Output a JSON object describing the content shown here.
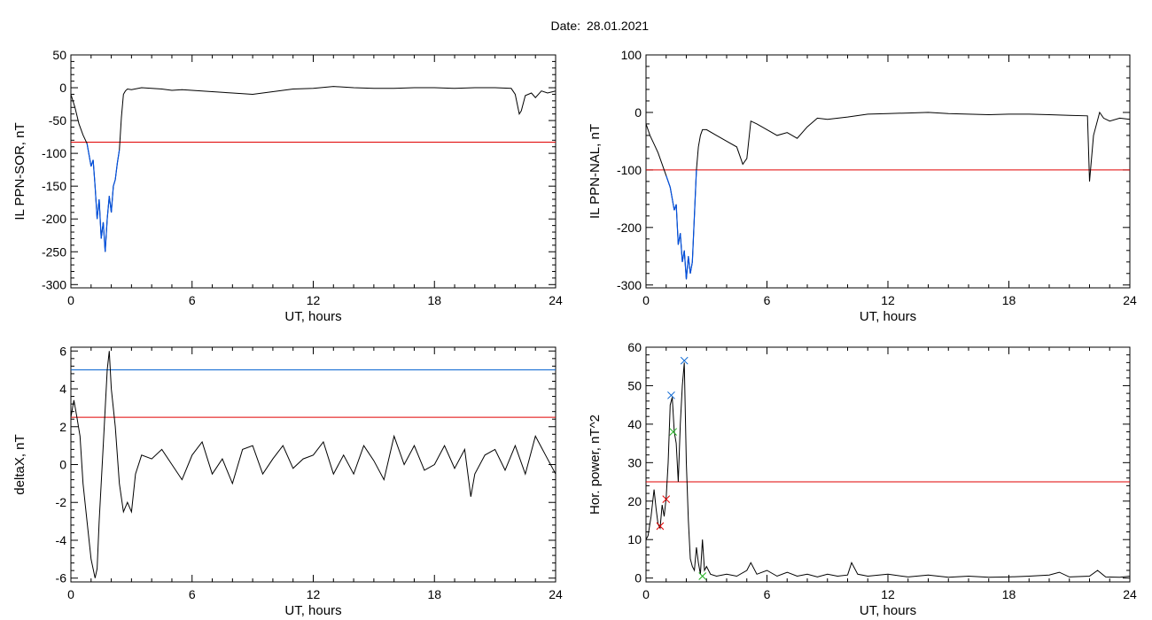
{
  "header": {
    "date_label": "Date:",
    "date_value": "28.01.2021"
  },
  "colors": {
    "signal": "#000000",
    "threshold_red": "#e00000",
    "threshold_blue": "#0060d0",
    "highlight_blue": "#0050e0",
    "marker_green": "#20b020"
  },
  "chart_data": [
    {
      "type": "line",
      "xlabel": "UT, hours",
      "ylabel": "IL PPN-SOR, nT",
      "xlim": [
        0,
        24
      ],
      "ylim": [
        -305,
        50
      ],
      "xticks": [
        0,
        6,
        12,
        18,
        24
      ],
      "yticks": [
        50,
        0,
        -50,
        -100,
        -150,
        -200,
        -250,
        -300
      ],
      "thresholds": [
        {
          "y": -83,
          "color": "red"
        }
      ],
      "highlight_below": -83,
      "series": [
        {
          "x": [
            0,
            0.2,
            0.4,
            0.6,
            0.8,
            1.0,
            1.1,
            1.2,
            1.3,
            1.4,
            1.5,
            1.6,
            1.7,
            1.8,
            1.9,
            2.0,
            2.1,
            2.2,
            2.3,
            2.4,
            2.5,
            2.6,
            2.7,
            2.8,
            3.0,
            3.5,
            4.0,
            4.5,
            5.0,
            5.5,
            6.0,
            7.0,
            8.0,
            9.0,
            10.0,
            11.0,
            12.0,
            13.0,
            14.0,
            15.0,
            16.0,
            17.0,
            18.0,
            19.0,
            20.0,
            21.0,
            21.8,
            22.0,
            22.2,
            22.3,
            22.5,
            22.8,
            23.0,
            23.3,
            23.6,
            24.0
          ],
          "y": [
            -10,
            -30,
            -55,
            -72,
            -85,
            -120,
            -110,
            -150,
            -200,
            -170,
            -230,
            -205,
            -250,
            -200,
            -165,
            -190,
            -150,
            -140,
            -115,
            -95,
            -45,
            -10,
            -5,
            -2,
            -3,
            0,
            -1,
            -2,
            -4,
            -3,
            -4,
            -6,
            -8,
            -10,
            -6,
            -2,
            -1,
            2,
            0,
            -1,
            -1,
            0,
            0,
            -1,
            0,
            0,
            -1,
            -10,
            -40,
            -35,
            -12,
            -8,
            -15,
            -5,
            -8,
            -5
          ]
        }
      ]
    },
    {
      "type": "line",
      "xlabel": "UT, hours",
      "ylabel": "IL PPN-NAL, nT",
      "xlim": [
        0,
        24
      ],
      "ylim": [
        -305,
        100
      ],
      "xticks": [
        0,
        6,
        12,
        18,
        24
      ],
      "yticks": [
        100,
        0,
        -100,
        -200,
        -300
      ],
      "thresholds": [
        {
          "y": -100,
          "color": "red"
        }
      ],
      "highlight_below": -100,
      "series": [
        {
          "x": [
            0,
            0.2,
            0.4,
            0.6,
            0.8,
            1.0,
            1.2,
            1.4,
            1.5,
            1.6,
            1.7,
            1.8,
            1.9,
            2.0,
            2.1,
            2.2,
            2.3,
            2.4,
            2.5,
            2.6,
            2.7,
            2.8,
            3.0,
            3.5,
            4.0,
            4.5,
            4.8,
            5.0,
            5.2,
            5.5,
            6.0,
            6.5,
            7.0,
            7.5,
            8.0,
            8.5,
            9.0,
            10.0,
            11.0,
            12.0,
            13.0,
            14.0,
            15.0,
            16.0,
            17.0,
            18.0,
            19.0,
            20.0,
            21.0,
            21.9,
            22.0,
            22.2,
            22.5,
            22.7,
            23.0,
            23.5,
            24.0
          ],
          "y": [
            -20,
            -40,
            -55,
            -70,
            -90,
            -110,
            -130,
            -170,
            -160,
            -230,
            -210,
            -260,
            -240,
            -290,
            -250,
            -280,
            -260,
            -180,
            -100,
            -60,
            -40,
            -30,
            -30,
            -40,
            -50,
            -60,
            -90,
            -80,
            -15,
            -20,
            -30,
            -40,
            -35,
            -45,
            -25,
            -10,
            -12,
            -8,
            -3,
            -2,
            -1,
            0,
            -2,
            -3,
            -4,
            -3,
            -3,
            -4,
            -5,
            -6,
            -120,
            -40,
            0,
            -10,
            -15,
            -10,
            -12
          ]
        }
      ]
    },
    {
      "type": "line",
      "xlabel": "UT, hours",
      "ylabel": "deltaX, nT",
      "xlim": [
        0,
        24
      ],
      "ylim": [
        -6.2,
        6.2
      ],
      "xticks": [
        0,
        6,
        12,
        18,
        24
      ],
      "yticks": [
        6,
        4,
        2,
        0,
        -2,
        -4,
        -6
      ],
      "thresholds": [
        {
          "y": 5,
          "color": "blue"
        },
        {
          "y": 2.5,
          "color": "red"
        }
      ],
      "series": [
        {
          "x": [
            0,
            0.15,
            0.3,
            0.45,
            0.6,
            0.8,
            1.0,
            1.2,
            1.3,
            1.4,
            1.6,
            1.8,
            1.9,
            2.0,
            2.2,
            2.4,
            2.6,
            2.8,
            3.0,
            3.2,
            3.5,
            4.0,
            4.5,
            5.0,
            5.5,
            6.0,
            6.5,
            7.0,
            7.5,
            8.0,
            8.5,
            9.0,
            9.5,
            10.0,
            10.5,
            11.0,
            11.5,
            12.0,
            12.5,
            13.0,
            13.5,
            14.0,
            14.5,
            15.0,
            15.5,
            16.0,
            16.5,
            17.0,
            17.5,
            18.0,
            18.5,
            19.0,
            19.5,
            19.8,
            20.0,
            20.5,
            21.0,
            21.5,
            22.0,
            22.5,
            23.0,
            23.5,
            24.0
          ],
          "y": [
            2.5,
            3.4,
            2.5,
            1.5,
            -1,
            -3,
            -5,
            -6,
            -5.5,
            -3,
            1,
            5,
            6,
            4,
            2,
            -1,
            -2.5,
            -2,
            -2.5,
            -0.5,
            0.5,
            0.3,
            0.8,
            0,
            -0.8,
            0.5,
            1.2,
            -0.5,
            0.3,
            -1,
            0.8,
            1,
            -0.5,
            0.3,
            1,
            -0.2,
            0.3,
            0.5,
            1.2,
            -0.5,
            0.5,
            -0.5,
            1,
            0.2,
            -0.8,
            1.5,
            0,
            1,
            -0.3,
            0,
            1,
            -0.2,
            0.8,
            -1.7,
            -0.5,
            0.5,
            0.8,
            -0.3,
            1,
            -0.5,
            1.5,
            0.5,
            -0.5
          ]
        }
      ]
    },
    {
      "type": "line",
      "xlabel": "UT, hours",
      "ylabel": "Hor. power, nT^2",
      "xlim": [
        0,
        24
      ],
      "ylim": [
        -1,
        60
      ],
      "xticks": [
        0,
        6,
        12,
        18,
        24
      ],
      "yticks": [
        60,
        50,
        40,
        30,
        20,
        10,
        0
      ],
      "thresholds": [
        {
          "y": 25,
          "color": "red"
        }
      ],
      "markers": [
        {
          "x": 0.7,
          "y": 13.5,
          "color": "red"
        },
        {
          "x": 1.0,
          "y": 20.5,
          "color": "red"
        },
        {
          "x": 1.25,
          "y": 47.5,
          "color": "blue"
        },
        {
          "x": 1.9,
          "y": 56.5,
          "color": "blue"
        },
        {
          "x": 1.35,
          "y": 38,
          "color": "green"
        },
        {
          "x": 2.8,
          "y": 0.5,
          "color": "green"
        }
      ],
      "series": [
        {
          "x": [
            0,
            0.1,
            0.25,
            0.4,
            0.5,
            0.6,
            0.7,
            0.8,
            0.9,
            1.0,
            1.1,
            1.2,
            1.3,
            1.4,
            1.5,
            1.6,
            1.7,
            1.8,
            1.9,
            2.0,
            2.1,
            2.2,
            2.3,
            2.4,
            2.5,
            2.6,
            2.7,
            2.8,
            2.9,
            3.0,
            3.2,
            3.5,
            4.0,
            4.5,
            5.0,
            5.2,
            5.5,
            6.0,
            6.5,
            7.0,
            7.5,
            8.0,
            8.5,
            9.0,
            9.5,
            10.0,
            10.2,
            10.5,
            11.0,
            12.0,
            13.0,
            14.0,
            15.0,
            16.0,
            17.0,
            18.0,
            19.0,
            20.0,
            20.5,
            21.0,
            22.0,
            22.4,
            22.8,
            23.5,
            24.0
          ],
          "y": [
            10,
            11,
            16,
            23,
            18,
            14,
            13,
            19,
            16,
            21,
            30,
            45,
            47,
            38,
            35,
            25,
            40,
            50,
            56,
            30,
            15,
            5,
            3,
            2,
            8,
            4,
            1,
            10,
            2,
            3,
            1,
            0.5,
            1,
            0.5,
            2,
            4,
            1,
            2,
            0.5,
            1.5,
            0.5,
            1,
            0.3,
            1,
            0.5,
            0.8,
            4,
            1,
            0.5,
            1,
            0.3,
            0.8,
            0.2,
            0.5,
            0.2,
            0.3,
            0.5,
            0.8,
            1.5,
            0.3,
            0.5,
            2,
            0.3,
            0.2,
            0.5
          ]
        }
      ]
    }
  ]
}
